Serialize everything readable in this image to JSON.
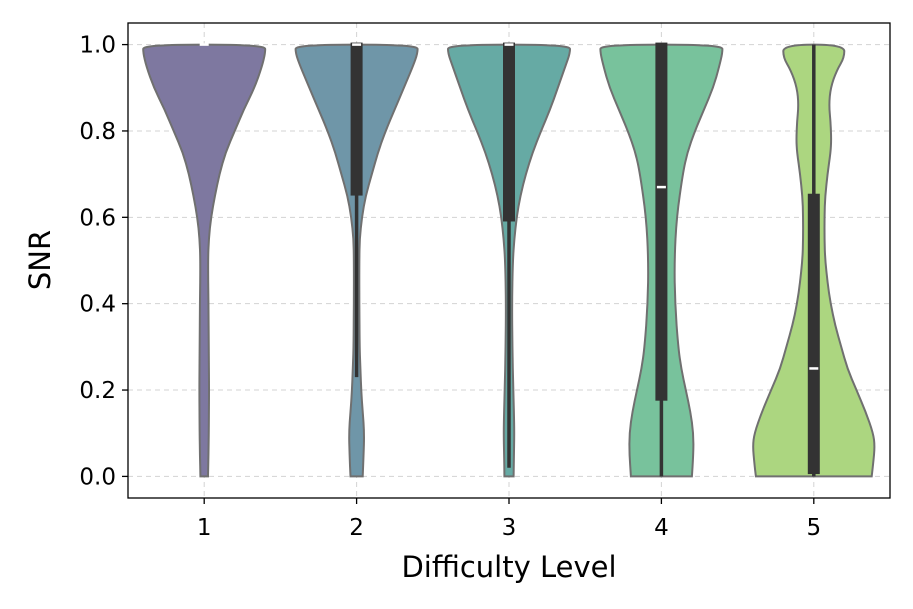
{
  "chart_data": {
    "type": "violin",
    "title": "",
    "xlabel": "Difficulty Level",
    "ylabel": "SNR",
    "xlim": [
      0.5,
      5.5
    ],
    "ylim": [
      -0.05,
      1.05
    ],
    "yticks": [
      0.0,
      0.2,
      0.4,
      0.6,
      0.8,
      1.0
    ],
    "ytick_labels": [
      "0.0",
      "0.2",
      "0.4",
      "0.6",
      "0.8",
      "1.0"
    ],
    "grid": true,
    "legend": "none",
    "categories": [
      "1",
      "2",
      "3",
      "4",
      "5"
    ],
    "violins": [
      {
        "category": "1",
        "color": "#7e78a0",
        "median": 1.0,
        "q1": 1.0,
        "q3": 1.0,
        "whisker_low": 1.0,
        "whisker_high": 1.0,
        "half_width_profile": [
          [
            0.0,
            0.025
          ],
          [
            0.05,
            0.028
          ],
          [
            0.1,
            0.03
          ],
          [
            0.2,
            0.032
          ],
          [
            0.3,
            0.03
          ],
          [
            0.4,
            0.028
          ],
          [
            0.5,
            0.025
          ],
          [
            0.55,
            0.03
          ],
          [
            0.6,
            0.045
          ],
          [
            0.65,
            0.07
          ],
          [
            0.7,
            0.1
          ],
          [
            0.75,
            0.14
          ],
          [
            0.8,
            0.2
          ],
          [
            0.85,
            0.26
          ],
          [
            0.9,
            0.33
          ],
          [
            0.95,
            0.38
          ],
          [
            0.98,
            0.4
          ],
          [
            1.0,
            0.4
          ]
        ]
      },
      {
        "category": "2",
        "color": "#6f96a8",
        "median": 1.0,
        "q1": 0.655,
        "q3": 1.0,
        "whisker_low": 0.23,
        "whisker_high": 1.0,
        "half_width_profile": [
          [
            0.0,
            0.04
          ],
          [
            0.05,
            0.046
          ],
          [
            0.1,
            0.05
          ],
          [
            0.15,
            0.04
          ],
          [
            0.2,
            0.03
          ],
          [
            0.25,
            0.025
          ],
          [
            0.3,
            0.02
          ],
          [
            0.4,
            0.018
          ],
          [
            0.5,
            0.018
          ],
          [
            0.55,
            0.02
          ],
          [
            0.6,
            0.035
          ],
          [
            0.65,
            0.06
          ],
          [
            0.7,
            0.1
          ],
          [
            0.75,
            0.14
          ],
          [
            0.8,
            0.19
          ],
          [
            0.85,
            0.25
          ],
          [
            0.9,
            0.31
          ],
          [
            0.95,
            0.37
          ],
          [
            0.98,
            0.4
          ],
          [
            1.0,
            0.4
          ]
        ]
      },
      {
        "category": "3",
        "color": "#66aaa4",
        "median": 1.0,
        "q1": 0.595,
        "q3": 1.0,
        "whisker_low": 0.02,
        "whisker_high": 1.0,
        "half_width_profile": [
          [
            0.0,
            0.03
          ],
          [
            0.05,
            0.032
          ],
          [
            0.1,
            0.035
          ],
          [
            0.15,
            0.032
          ],
          [
            0.2,
            0.028
          ],
          [
            0.3,
            0.022
          ],
          [
            0.4,
            0.02
          ],
          [
            0.5,
            0.025
          ],
          [
            0.55,
            0.035
          ],
          [
            0.6,
            0.05
          ],
          [
            0.65,
            0.075
          ],
          [
            0.7,
            0.11
          ],
          [
            0.75,
            0.155
          ],
          [
            0.8,
            0.21
          ],
          [
            0.85,
            0.27
          ],
          [
            0.9,
            0.32
          ],
          [
            0.95,
            0.37
          ],
          [
            0.98,
            0.4
          ],
          [
            1.0,
            0.4
          ]
        ]
      },
      {
        "category": "4",
        "color": "#78c29c",
        "median": 0.67,
        "q1": 0.18,
        "q3": 1.0,
        "whisker_low": 0.0,
        "whisker_high": 1.0,
        "half_width_profile": [
          [
            0.0,
            0.2
          ],
          [
            0.05,
            0.21
          ],
          [
            0.1,
            0.21
          ],
          [
            0.15,
            0.19
          ],
          [
            0.2,
            0.16
          ],
          [
            0.25,
            0.13
          ],
          [
            0.3,
            0.11
          ],
          [
            0.4,
            0.09
          ],
          [
            0.5,
            0.085
          ],
          [
            0.6,
            0.1
          ],
          [
            0.7,
            0.14
          ],
          [
            0.75,
            0.17
          ],
          [
            0.8,
            0.22
          ],
          [
            0.85,
            0.28
          ],
          [
            0.9,
            0.34
          ],
          [
            0.95,
            0.38
          ],
          [
            0.98,
            0.4
          ],
          [
            1.0,
            0.4
          ]
        ]
      },
      {
        "category": "5",
        "color": "#acd680",
        "median": 0.25,
        "q1": 0.01,
        "q3": 0.65,
        "whisker_low": 0.0,
        "whisker_high": 1.0,
        "half_width_profile": [
          [
            0.0,
            0.38
          ],
          [
            0.03,
            0.39
          ],
          [
            0.07,
            0.4
          ],
          [
            0.1,
            0.39
          ],
          [
            0.15,
            0.34
          ],
          [
            0.2,
            0.28
          ],
          [
            0.25,
            0.22
          ],
          [
            0.3,
            0.18
          ],
          [
            0.35,
            0.14
          ],
          [
            0.4,
            0.11
          ],
          [
            0.45,
            0.09
          ],
          [
            0.5,
            0.075
          ],
          [
            0.55,
            0.07
          ],
          [
            0.6,
            0.07
          ],
          [
            0.65,
            0.075
          ],
          [
            0.7,
            0.09
          ],
          [
            0.75,
            0.11
          ],
          [
            0.78,
            0.115
          ],
          [
            0.82,
            0.11
          ],
          [
            0.86,
            0.1
          ],
          [
            0.9,
            0.11
          ],
          [
            0.94,
            0.15
          ],
          [
            0.97,
            0.2
          ],
          [
            1.0,
            0.2
          ]
        ]
      }
    ]
  }
}
